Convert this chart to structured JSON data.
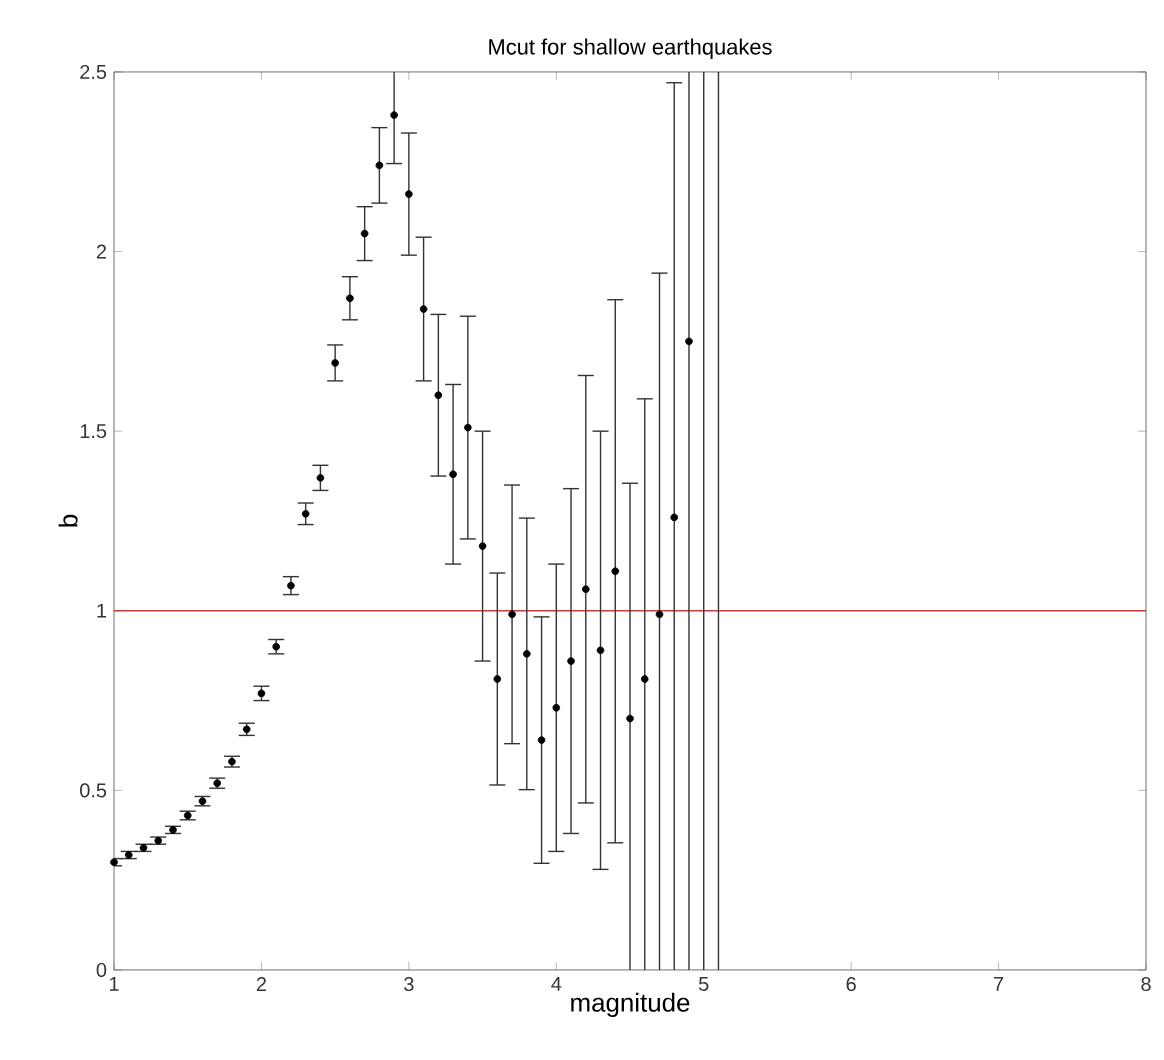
{
  "chart_data": {
    "type": "scatter",
    "title": "Mcut for shallow earthquakes",
    "xlabel": "magnitude",
    "ylabel": "b",
    "x": [
      1.0,
      1.1,
      1.2,
      1.3,
      1.4,
      1.5,
      1.6,
      1.7,
      1.8,
      1.9,
      2.0,
      2.1,
      2.2,
      2.3,
      2.4,
      2.5,
      2.6,
      2.7,
      2.8,
      2.9,
      3.0,
      3.1,
      3.2,
      3.3,
      3.4,
      3.5,
      3.6,
      3.7,
      3.8,
      3.9,
      4.0,
      4.1,
      4.2,
      4.3,
      4.4,
      4.5,
      4.6,
      4.7,
      4.8,
      4.9
    ],
    "values": [
      0.3,
      0.32,
      0.34,
      0.36,
      0.39,
      0.43,
      0.47,
      0.52,
      0.58,
      0.67,
      0.77,
      0.9,
      1.07,
      1.27,
      1.37,
      1.69,
      1.87,
      2.05,
      2.24,
      2.38,
      2.16,
      1.84,
      1.6,
      1.38,
      1.51,
      1.18,
      0.81,
      0.99,
      0.88,
      0.64,
      0.73,
      0.86,
      1.06,
      0.89,
      1.11,
      0.7,
      0.81,
      0.99,
      1.26,
      1.75
    ],
    "errors": [
      0.01,
      0.01,
      0.01,
      0.01,
      0.01,
      0.012,
      0.013,
      0.014,
      0.015,
      0.017,
      0.02,
      0.02,
      0.025,
      0.03,
      0.035,
      0.05,
      0.06,
      0.075,
      0.105,
      [
        2.245,
        2.5
      ],
      0.17,
      0.2,
      0.225,
      0.25,
      0.31,
      0.32,
      0.295,
      0.36,
      0.378,
      0.343,
      0.4,
      0.48,
      0.595,
      0.61,
      0.756,
      [
        0,
        1.355
      ],
      [
        0,
        1.59
      ],
      [
        0,
        1.94
      ],
      [
        0,
        2.47
      ],
      [
        0,
        2.5
      ]
    ],
    "color": "#000000",
    "marker": "circle",
    "xlim": [
      1,
      8
    ],
    "ylim": [
      0,
      2.5
    ],
    "xticks": [
      1,
      2,
      3,
      4,
      5,
      6,
      7,
      8
    ],
    "yticks": [
      0,
      {
        "value": 0.5,
        "label": "0.5"
      },
      1,
      {
        "value": 1.5,
        "label": "1.5"
      },
      2,
      {
        "value": 2.5,
        "label": "2.5"
      }
    ],
    "ref_lines": [
      {
        "axis": "y",
        "value": 1,
        "color": "#c04040"
      },
      {
        "axis": "x",
        "value": 5.0,
        "color": "#333333"
      },
      {
        "axis": "x",
        "value": 5.1,
        "color": "#333333"
      }
    ]
  }
}
